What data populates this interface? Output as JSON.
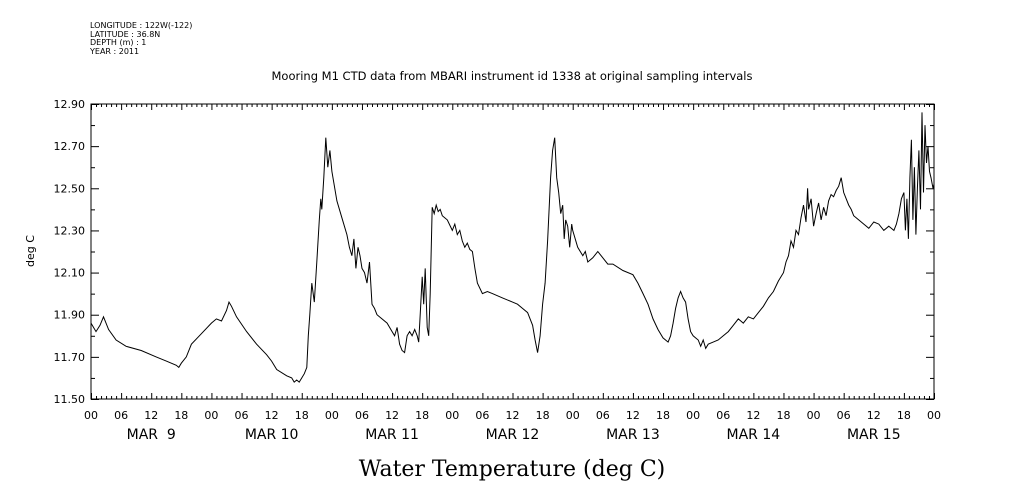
{
  "header": {
    "longitude": "LONGITUDE : 122W(-122)",
    "latitude": "LATITUDE : 36.8N",
    "depth": "DEPTH (m) : 1",
    "year": "YEAR : 2011"
  },
  "chart_data": {
    "type": "line",
    "title": "Mooring M1 CTD data from MBARI instrument id 1338 at original sampling intervals",
    "xlabel": "Water Temperature (deg C)",
    "ylabel": "deg C",
    "x_units": "hours since MAR 9 00",
    "xlim": [
      0,
      168
    ],
    "ylim": [
      11.5,
      12.9
    ],
    "y_ticks": [
      "11.50",
      "11.70",
      "11.90",
      "12.10",
      "12.30",
      "12.50",
      "12.70",
      "12.90"
    ],
    "x_hour_ticks": [
      "00",
      "06",
      "12",
      "18",
      "00",
      "06",
      "12",
      "18",
      "00",
      "06",
      "12",
      "18",
      "00",
      "06",
      "12",
      "18",
      "00",
      "06",
      "12",
      "18",
      "00",
      "06",
      "12",
      "18",
      "00",
      "06",
      "12",
      "18",
      "00"
    ],
    "day_labels": [
      "MAR  9",
      "MAR 10",
      "MAR 11",
      "MAR 12",
      "MAR 13",
      "MAR 14",
      "MAR 15"
    ],
    "grid": false,
    "series": [
      {
        "name": "",
        "color": "#000000",
        "points": [
          [
            0,
            11.86
          ],
          [
            1,
            11.82
          ],
          [
            1.8,
            11.85
          ],
          [
            2.5,
            11.89
          ],
          [
            3.5,
            11.83
          ],
          [
            5,
            11.78
          ],
          [
            7,
            11.75
          ],
          [
            10,
            11.73
          ],
          [
            13,
            11.7
          ],
          [
            15,
            11.68
          ],
          [
            17,
            11.66
          ],
          [
            17.5,
            11.65
          ],
          [
            18,
            11.67
          ],
          [
            19,
            11.7
          ],
          [
            20,
            11.76
          ],
          [
            22,
            11.81
          ],
          [
            24,
            11.86
          ],
          [
            25,
            11.88
          ],
          [
            26,
            11.87
          ],
          [
            27,
            11.92
          ],
          [
            27.5,
            11.96
          ],
          [
            28,
            11.94
          ],
          [
            29,
            11.89
          ],
          [
            31,
            11.82
          ],
          [
            33,
            11.76
          ],
          [
            35,
            11.71
          ],
          [
            36,
            11.68
          ],
          [
            37,
            11.64
          ],
          [
            39,
            11.61
          ],
          [
            40,
            11.6
          ],
          [
            40.5,
            11.58
          ],
          [
            41,
            11.59
          ],
          [
            41.5,
            11.58
          ],
          [
            42,
            11.6
          ],
          [
            42.5,
            11.62
          ],
          [
            43,
            11.65
          ],
          [
            43.3,
            11.8
          ],
          [
            43.6,
            11.9
          ],
          [
            44,
            12.05
          ],
          [
            44.5,
            11.96
          ],
          [
            45,
            12.15
          ],
          [
            45.5,
            12.35
          ],
          [
            45.8,
            12.45
          ],
          [
            46,
            12.4
          ],
          [
            46.4,
            12.55
          ],
          [
            46.8,
            12.74
          ],
          [
            47.2,
            12.6
          ],
          [
            47.6,
            12.68
          ],
          [
            48,
            12.58
          ],
          [
            49,
            12.44
          ],
          [
            50,
            12.36
          ],
          [
            51,
            12.28
          ],
          [
            51.5,
            12.22
          ],
          [
            52,
            12.18
          ],
          [
            52.4,
            12.26
          ],
          [
            52.8,
            12.12
          ],
          [
            53.2,
            12.22
          ],
          [
            53.6,
            12.18
          ],
          [
            54,
            12.12
          ],
          [
            54.5,
            12.1
          ],
          [
            55,
            12.05
          ],
          [
            55.5,
            12.15
          ],
          [
            56,
            11.95
          ],
          [
            56.5,
            11.93
          ],
          [
            57,
            11.9
          ],
          [
            58,
            11.88
          ],
          [
            59,
            11.86
          ],
          [
            60,
            11.82
          ],
          [
            60.5,
            11.8
          ],
          [
            61,
            11.84
          ],
          [
            61.5,
            11.76
          ],
          [
            62,
            11.73
          ],
          [
            62.5,
            11.72
          ],
          [
            63,
            11.8
          ],
          [
            63.5,
            11.82
          ],
          [
            64,
            11.8
          ],
          [
            64.5,
            11.83
          ],
          [
            65,
            11.8
          ],
          [
            65.3,
            11.77
          ],
          [
            65.6,
            11.9
          ],
          [
            66,
            12.08
          ],
          [
            66.3,
            11.95
          ],
          [
            66.6,
            12.12
          ],
          [
            67,
            11.84
          ],
          [
            67.3,
            11.8
          ],
          [
            67.6,
            12.0
          ],
          [
            68,
            12.41
          ],
          [
            68.4,
            12.38
          ],
          [
            68.8,
            12.42
          ],
          [
            69.2,
            12.39
          ],
          [
            69.6,
            12.4
          ],
          [
            70,
            12.37
          ],
          [
            71,
            12.35
          ],
          [
            72,
            12.3
          ],
          [
            72.5,
            12.33
          ],
          [
            73,
            12.28
          ],
          [
            73.5,
            12.3
          ],
          [
            74,
            12.25
          ],
          [
            74.5,
            12.22
          ],
          [
            75,
            12.24
          ],
          [
            75.5,
            12.21
          ],
          [
            76,
            12.2
          ],
          [
            76.5,
            12.12
          ],
          [
            77,
            12.05
          ],
          [
            78,
            12.0
          ],
          [
            79,
            12.01
          ],
          [
            80,
            12.0
          ],
          [
            82,
            11.98
          ],
          [
            84,
            11.96
          ],
          [
            85,
            11.95
          ],
          [
            86,
            11.93
          ],
          [
            87,
            11.91
          ],
          [
            88,
            11.85
          ],
          [
            88.5,
            11.78
          ],
          [
            89,
            11.72
          ],
          [
            89.5,
            11.8
          ],
          [
            90,
            11.95
          ],
          [
            90.5,
            12.05
          ],
          [
            91,
            12.25
          ],
          [
            91.3,
            12.4
          ],
          [
            91.6,
            12.55
          ],
          [
            92,
            12.68
          ],
          [
            92.4,
            12.74
          ],
          [
            92.8,
            12.55
          ],
          [
            93.2,
            12.48
          ],
          [
            93.6,
            12.38
          ],
          [
            94,
            12.42
          ],
          [
            94.3,
            12.26
          ],
          [
            94.6,
            12.35
          ],
          [
            95,
            12.32
          ],
          [
            95.4,
            12.22
          ],
          [
            95.8,
            12.33
          ],
          [
            96,
            12.3
          ],
          [
            97,
            12.22
          ],
          [
            98,
            12.18
          ],
          [
            98.5,
            12.2
          ],
          [
            99,
            12.15
          ],
          [
            100,
            12.17
          ],
          [
            101,
            12.2
          ],
          [
            102,
            12.17
          ],
          [
            103,
            12.14
          ],
          [
            104,
            12.14
          ],
          [
            106,
            12.11
          ],
          [
            108,
            12.09
          ],
          [
            109,
            12.05
          ],
          [
            110,
            12.0
          ],
          [
            111,
            11.95
          ],
          [
            112,
            11.88
          ],
          [
            113,
            11.83
          ],
          [
            114,
            11.79
          ],
          [
            115,
            11.77
          ],
          [
            115.5,
            11.8
          ],
          [
            116,
            11.86
          ],
          [
            116.5,
            11.93
          ],
          [
            117,
            11.98
          ],
          [
            117.5,
            12.01
          ],
          [
            118,
            11.98
          ],
          [
            118.5,
            11.96
          ],
          [
            119,
            11.88
          ],
          [
            119.5,
            11.82
          ],
          [
            120,
            11.8
          ],
          [
            121,
            11.78
          ],
          [
            121.5,
            11.75
          ],
          [
            122,
            11.78
          ],
          [
            122.5,
            11.74
          ],
          [
            123,
            11.76
          ],
          [
            124,
            11.77
          ],
          [
            125,
            11.78
          ],
          [
            126,
            11.8
          ],
          [
            127,
            11.82
          ],
          [
            128,
            11.85
          ],
          [
            129,
            11.88
          ],
          [
            130,
            11.86
          ],
          [
            131,
            11.89
          ],
          [
            132,
            11.88
          ],
          [
            133,
            11.91
          ],
          [
            134,
            11.94
          ],
          [
            135,
            11.98
          ],
          [
            136,
            12.01
          ],
          [
            137,
            12.06
          ],
          [
            138,
            12.1
          ],
          [
            138.5,
            12.15
          ],
          [
            139,
            12.18
          ],
          [
            139.5,
            12.25
          ],
          [
            140,
            12.22
          ],
          [
            140.5,
            12.3
          ],
          [
            141,
            12.28
          ],
          [
            141.5,
            12.36
          ],
          [
            142,
            12.42
          ],
          [
            142.5,
            12.34
          ],
          [
            142.8,
            12.5
          ],
          [
            143,
            12.4
          ],
          [
            143.5,
            12.45
          ],
          [
            144,
            12.32
          ],
          [
            144.5,
            12.38
          ],
          [
            145,
            12.43
          ],
          [
            145.5,
            12.35
          ],
          [
            146,
            12.41
          ],
          [
            146.5,
            12.37
          ],
          [
            147,
            12.44
          ],
          [
            147.5,
            12.47
          ],
          [
            148,
            12.46
          ],
          [
            148.5,
            12.49
          ],
          [
            149,
            12.51
          ],
          [
            149.5,
            12.55
          ],
          [
            150,
            12.48
          ],
          [
            150.5,
            12.45
          ],
          [
            151,
            12.42
          ],
          [
            151.5,
            12.4
          ],
          [
            152,
            12.37
          ],
          [
            153,
            12.35
          ],
          [
            154,
            12.33
          ],
          [
            155,
            12.31
          ],
          [
            156,
            12.34
          ],
          [
            157,
            12.33
          ],
          [
            158,
            12.3
          ],
          [
            159,
            12.32
          ],
          [
            160,
            12.3
          ],
          [
            160.5,
            12.33
          ],
          [
            161,
            12.38
          ],
          [
            161.5,
            12.45
          ],
          [
            162,
            12.48
          ],
          [
            162.3,
            12.3
          ],
          [
            162.6,
            12.45
          ],
          [
            162.9,
            12.26
          ],
          [
            163.2,
            12.55
          ],
          [
            163.5,
            12.73
          ],
          [
            163.8,
            12.35
          ],
          [
            164.1,
            12.6
          ],
          [
            164.4,
            12.28
          ],
          [
            164.7,
            12.5
          ],
          [
            165,
            12.68
          ],
          [
            165.3,
            12.4
          ],
          [
            165.6,
            12.86
          ],
          [
            165.9,
            12.48
          ],
          [
            166.2,
            12.8
          ],
          [
            166.5,
            12.62
          ],
          [
            166.8,
            12.7
          ],
          [
            167.1,
            12.58
          ],
          [
            167.4,
            12.55
          ],
          [
            167.8,
            12.5
          ],
          [
            168,
            12.52
          ]
        ]
      }
    ]
  }
}
